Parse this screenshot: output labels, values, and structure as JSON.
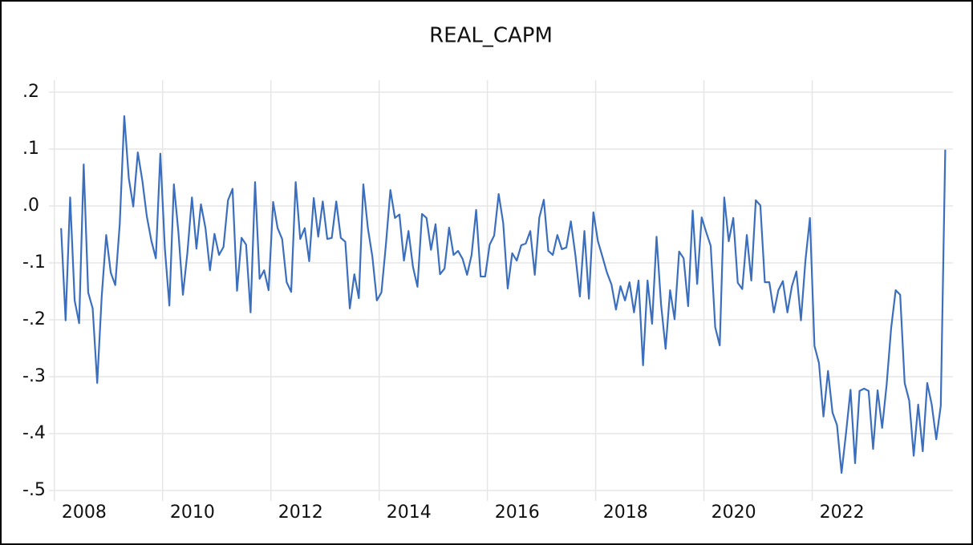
{
  "chart_data": {
    "type": "line",
    "title": "REAL_CAPM",
    "x": [
      2008.125,
      2008.208,
      2008.292,
      2008.375,
      2008.458,
      2008.542,
      2008.625,
      2008.708,
      2008.792,
      2008.875,
      2008.958,
      2009.042,
      2009.125,
      2009.208,
      2009.292,
      2009.375,
      2009.458,
      2009.542,
      2009.625,
      2009.708,
      2009.792,
      2009.875,
      2009.958,
      2010.042,
      2010.125,
      2010.208,
      2010.292,
      2010.375,
      2010.458,
      2010.542,
      2010.625,
      2010.708,
      2010.792,
      2010.875,
      2010.958,
      2011.042,
      2011.125,
      2011.208,
      2011.292,
      2011.375,
      2011.458,
      2011.542,
      2011.625,
      2011.708,
      2011.792,
      2011.875,
      2011.958,
      2012.042,
      2012.125,
      2012.208,
      2012.292,
      2012.375,
      2012.458,
      2012.542,
      2012.625,
      2012.708,
      2012.792,
      2012.875,
      2012.958,
      2013.042,
      2013.125,
      2013.208,
      2013.292,
      2013.375,
      2013.458,
      2013.542,
      2013.625,
      2013.708,
      2013.792,
      2013.875,
      2013.958,
      2014.042,
      2014.125,
      2014.208,
      2014.292,
      2014.375,
      2014.458,
      2014.542,
      2014.625,
      2014.708,
      2014.792,
      2014.875,
      2014.958,
      2015.042,
      2015.125,
      2015.208,
      2015.292,
      2015.375,
      2015.458,
      2015.542,
      2015.625,
      2015.708,
      2015.792,
      2015.875,
      2015.958,
      2016.042,
      2016.125,
      2016.208,
      2016.292,
      2016.375,
      2016.458,
      2016.542,
      2016.625,
      2016.708,
      2016.792,
      2016.875,
      2016.958,
      2017.042,
      2017.125,
      2017.208,
      2017.292,
      2017.375,
      2017.458,
      2017.542,
      2017.625,
      2017.708,
      2017.792,
      2017.875,
      2017.958,
      2018.042,
      2018.125,
      2018.208,
      2018.292,
      2018.375,
      2018.458,
      2018.542,
      2018.625,
      2018.708,
      2018.792,
      2018.875,
      2018.958,
      2019.042,
      2019.125,
      2019.208,
      2019.292,
      2019.375,
      2019.458,
      2019.542,
      2019.625,
      2019.708,
      2019.792,
      2019.875,
      2019.958,
      2020.042,
      2020.125,
      2020.208,
      2020.292,
      2020.375,
      2020.458,
      2020.542,
      2020.625,
      2020.708,
      2020.792,
      2020.875,
      2020.958,
      2021.042,
      2021.125,
      2021.208,
      2021.292,
      2021.375,
      2021.458,
      2021.542,
      2021.625,
      2021.708,
      2021.792,
      2021.875,
      2021.958,
      2022.042,
      2022.125,
      2022.208,
      2022.292,
      2022.375,
      2022.458,
      2022.542,
      2022.625,
      2022.708,
      2022.792,
      2022.875,
      2022.958,
      2023.042,
      2023.125,
      2023.208,
      2023.292,
      2023.375,
      2023.458,
      2023.542,
      2023.625,
      2023.708,
      2023.792,
      2023.875,
      2023.958,
      2024.042,
      2024.125,
      2024.208,
      2024.292,
      2024.375,
      2024.458
    ],
    "series": [
      {
        "color": "#3b6fbe",
        "values": [
          -0.039,
          -0.201,
          0.015,
          -0.166,
          -0.206,
          0.073,
          -0.152,
          -0.18,
          -0.311,
          -0.159,
          -0.051,
          -0.117,
          -0.139,
          -0.032,
          0.158,
          0.049,
          -0.001,
          0.094,
          0.045,
          -0.018,
          -0.061,
          -0.092,
          0.092,
          -0.075,
          -0.175,
          0.038,
          -0.046,
          -0.156,
          -0.082,
          0.015,
          -0.075,
          0.003,
          -0.039,
          -0.113,
          -0.049,
          -0.086,
          -0.072,
          0.01,
          0.03,
          -0.149,
          -0.056,
          -0.068,
          -0.187,
          0.042,
          -0.128,
          -0.113,
          -0.148,
          0.007,
          -0.039,
          -0.058,
          -0.134,
          -0.151,
          0.042,
          -0.058,
          -0.039,
          -0.097,
          0.014,
          -0.054,
          0.008,
          -0.058,
          -0.056,
          0.008,
          -0.056,
          -0.063,
          -0.18,
          -0.12,
          -0.162,
          0.038,
          -0.039,
          -0.089,
          -0.166,
          -0.152,
          -0.068,
          0.028,
          -0.021,
          -0.015,
          -0.096,
          -0.044,
          -0.107,
          -0.142,
          -0.014,
          -0.021,
          -0.077,
          -0.032,
          -0.12,
          -0.11,
          -0.038,
          -0.086,
          -0.079,
          -0.093,
          -0.121,
          -0.086,
          -0.007,
          -0.124,
          -0.124,
          -0.068,
          -0.052,
          0.021,
          -0.03,
          -0.145,
          -0.083,
          -0.096,
          -0.069,
          -0.066,
          -0.044,
          -0.121,
          -0.021,
          0.011,
          -0.079,
          -0.086,
          -0.051,
          -0.076,
          -0.073,
          -0.027,
          -0.086,
          -0.159,
          -0.044,
          -0.163,
          -0.011,
          -0.062,
          -0.089,
          -0.117,
          -0.138,
          -0.182,
          -0.141,
          -0.166,
          -0.134,
          -0.187,
          -0.131,
          -0.28,
          -0.131,
          -0.207,
          -0.054,
          -0.173,
          -0.251,
          -0.148,
          -0.199,
          -0.08,
          -0.092,
          -0.176,
          -0.008,
          -0.137,
          -0.02,
          -0.046,
          -0.07,
          -0.213,
          -0.245,
          0.015,
          -0.062,
          -0.021,
          -0.135,
          -0.146,
          -0.051,
          -0.131,
          0.01,
          0.001,
          -0.134,
          -0.134,
          -0.187,
          -0.148,
          -0.132,
          -0.187,
          -0.141,
          -0.115,
          -0.201,
          -0.096,
          -0.021,
          -0.246,
          -0.276,
          -0.37,
          -0.29,
          -0.363,
          -0.385,
          -0.469,
          -0.399,
          -0.323,
          -0.452,
          -0.325,
          -0.321,
          -0.325,
          -0.427,
          -0.324,
          -0.39,
          -0.314,
          -0.215,
          -0.148,
          -0.156,
          -0.311,
          -0.342,
          -0.439,
          -0.349,
          -0.431,
          -0.311,
          -0.349,
          -0.41,
          -0.351,
          0.099
        ]
      }
    ],
    "xlim": [
      2007.9,
      2024.6
    ],
    "xticks": [
      2008,
      2010,
      2012,
      2014,
      2016,
      2018,
      2020,
      2022
    ],
    "ylim": [
      -0.5,
      0.2
    ],
    "yticks": [
      {
        "value": -0.5,
        "label": "-.5"
      },
      {
        "value": -0.4,
        "label": "-.4"
      },
      {
        "value": -0.3,
        "label": "-.3"
      },
      {
        "value": -0.2,
        "label": "-.2"
      },
      {
        "value": -0.1,
        "label": "-.1"
      },
      {
        "value": 0,
        "label": ".0"
      },
      {
        "value": 0.1,
        "label": ".1"
      },
      {
        "value": 0.2,
        "label": ".2"
      }
    ],
    "grid": true
  }
}
